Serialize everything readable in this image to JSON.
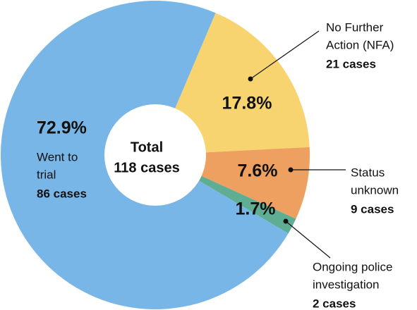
{
  "chart_data": {
    "type": "pie",
    "center_label": [
      "Total",
      "118 cases"
    ],
    "categories": [
      [
        "No Further",
        "Action (NFA)"
      ],
      [
        "Status",
        "unknown"
      ],
      [
        "Ongoing police",
        "investigation"
      ],
      [
        "Went to",
        "trial"
      ]
    ],
    "values": [
      17.8,
      7.6,
      1.7,
      72.9
    ],
    "value_labels": [
      "17.8%",
      "7.6%",
      "1.7%",
      "72.9%"
    ],
    "case_labels": [
      "21 cases",
      "9 cases",
      "2 cases",
      "86 cases"
    ],
    "colors": [
      "#f7d470",
      "#eda05f",
      "#5fae94",
      "#78b6e7"
    ]
  }
}
